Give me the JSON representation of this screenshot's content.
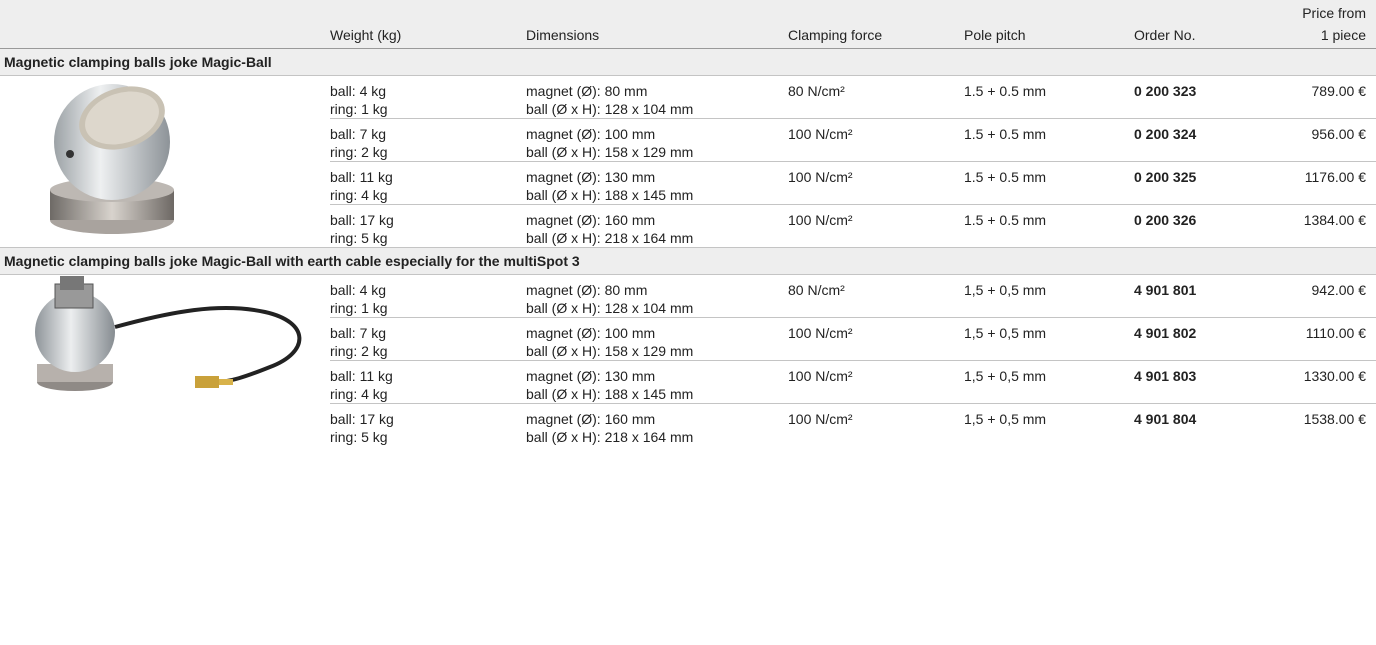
{
  "header": {
    "columns": [
      "Weight (kg)",
      "Dimensions",
      "Clamping force",
      "Pole pitch",
      "Order No."
    ],
    "price": [
      "Price from",
      "1 piece"
    ]
  },
  "groups": [
    {
      "title": "Magnetic clamping balls joke Magic-Ball",
      "rows": [
        {
          "weight": [
            "ball: 4 kg",
            "ring: 1 kg"
          ],
          "dimensions": [
            "magnet (Ø): 80 mm",
            "ball (Ø x H): 128 x 104 mm"
          ],
          "force": "80 N/cm²",
          "pitch": "1.5 + 0.5 mm",
          "order": "0 200 323",
          "price": "789.00 €"
        },
        {
          "weight": [
            "ball: 7 kg",
            "ring: 2 kg"
          ],
          "dimensions": [
            "magnet (Ø): 100 mm",
            "ball (Ø x H): 158 x 129 mm"
          ],
          "force": "100 N/cm²",
          "pitch": "1.5 + 0.5 mm",
          "order": "0 200 324",
          "price": "956.00 €"
        },
        {
          "weight": [
            "ball: 11 kg",
            "ring: 4 kg"
          ],
          "dimensions": [
            "magnet (Ø): 130 mm",
            "ball (Ø x H): 188 x 145 mm"
          ],
          "force": "100 N/cm²",
          "pitch": "1.5 + 0.5 mm",
          "order": "0 200 325",
          "price": "1176.00 €"
        },
        {
          "weight": [
            "ball: 17 kg",
            "ring: 5 kg"
          ],
          "dimensions": [
            "magnet (Ø): 160 mm",
            "ball (Ø x H): 218 x 164 mm"
          ],
          "force": "100 N/cm²",
          "pitch": "1.5 + 0.5 mm",
          "order": "0 200 326",
          "price": "1384.00 €"
        }
      ]
    },
    {
      "title": "Magnetic clamping balls joke Magic-Ball with earth cable especially for the multiSpot 3",
      "rows": [
        {
          "weight": [
            "ball: 4 kg",
            "ring: 1 kg"
          ],
          "dimensions": [
            "magnet (Ø): 80 mm",
            "ball (Ø x H): 128 x 104 mm"
          ],
          "force": "80 N/cm²",
          "pitch": "1,5 + 0,5 mm",
          "order": "4 901 801",
          "price": "942.00 €"
        },
        {
          "weight": [
            "ball: 7 kg",
            "ring: 2 kg"
          ],
          "dimensions": [
            "magnet (Ø): 100 mm",
            "ball (Ø x H): 158 x 129 mm"
          ],
          "force": "100 N/cm²",
          "pitch": "1,5 + 0,5 mm",
          "order": "4 901 802",
          "price": "1110.00 €"
        },
        {
          "weight": [
            "ball: 11 kg",
            "ring: 4 kg"
          ],
          "dimensions": [
            "magnet (Ø): 130 mm",
            "ball (Ø x H): 188 x 145 mm"
          ],
          "force": "100 N/cm²",
          "pitch": "1,5 + 0,5 mm",
          "order": "4 901 803",
          "price": "1330.00 €"
        },
        {
          "weight": [
            "ball: 17 kg",
            "ring: 5 kg"
          ],
          "dimensions": [
            "magnet (Ø): 160 mm",
            "ball (Ø x H): 218 x 164 mm"
          ],
          "force": "100 N/cm²",
          "pitch": "1,5 + 0,5 mm",
          "order": "4 901 804",
          "price": "1538.00 €"
        }
      ]
    }
  ]
}
